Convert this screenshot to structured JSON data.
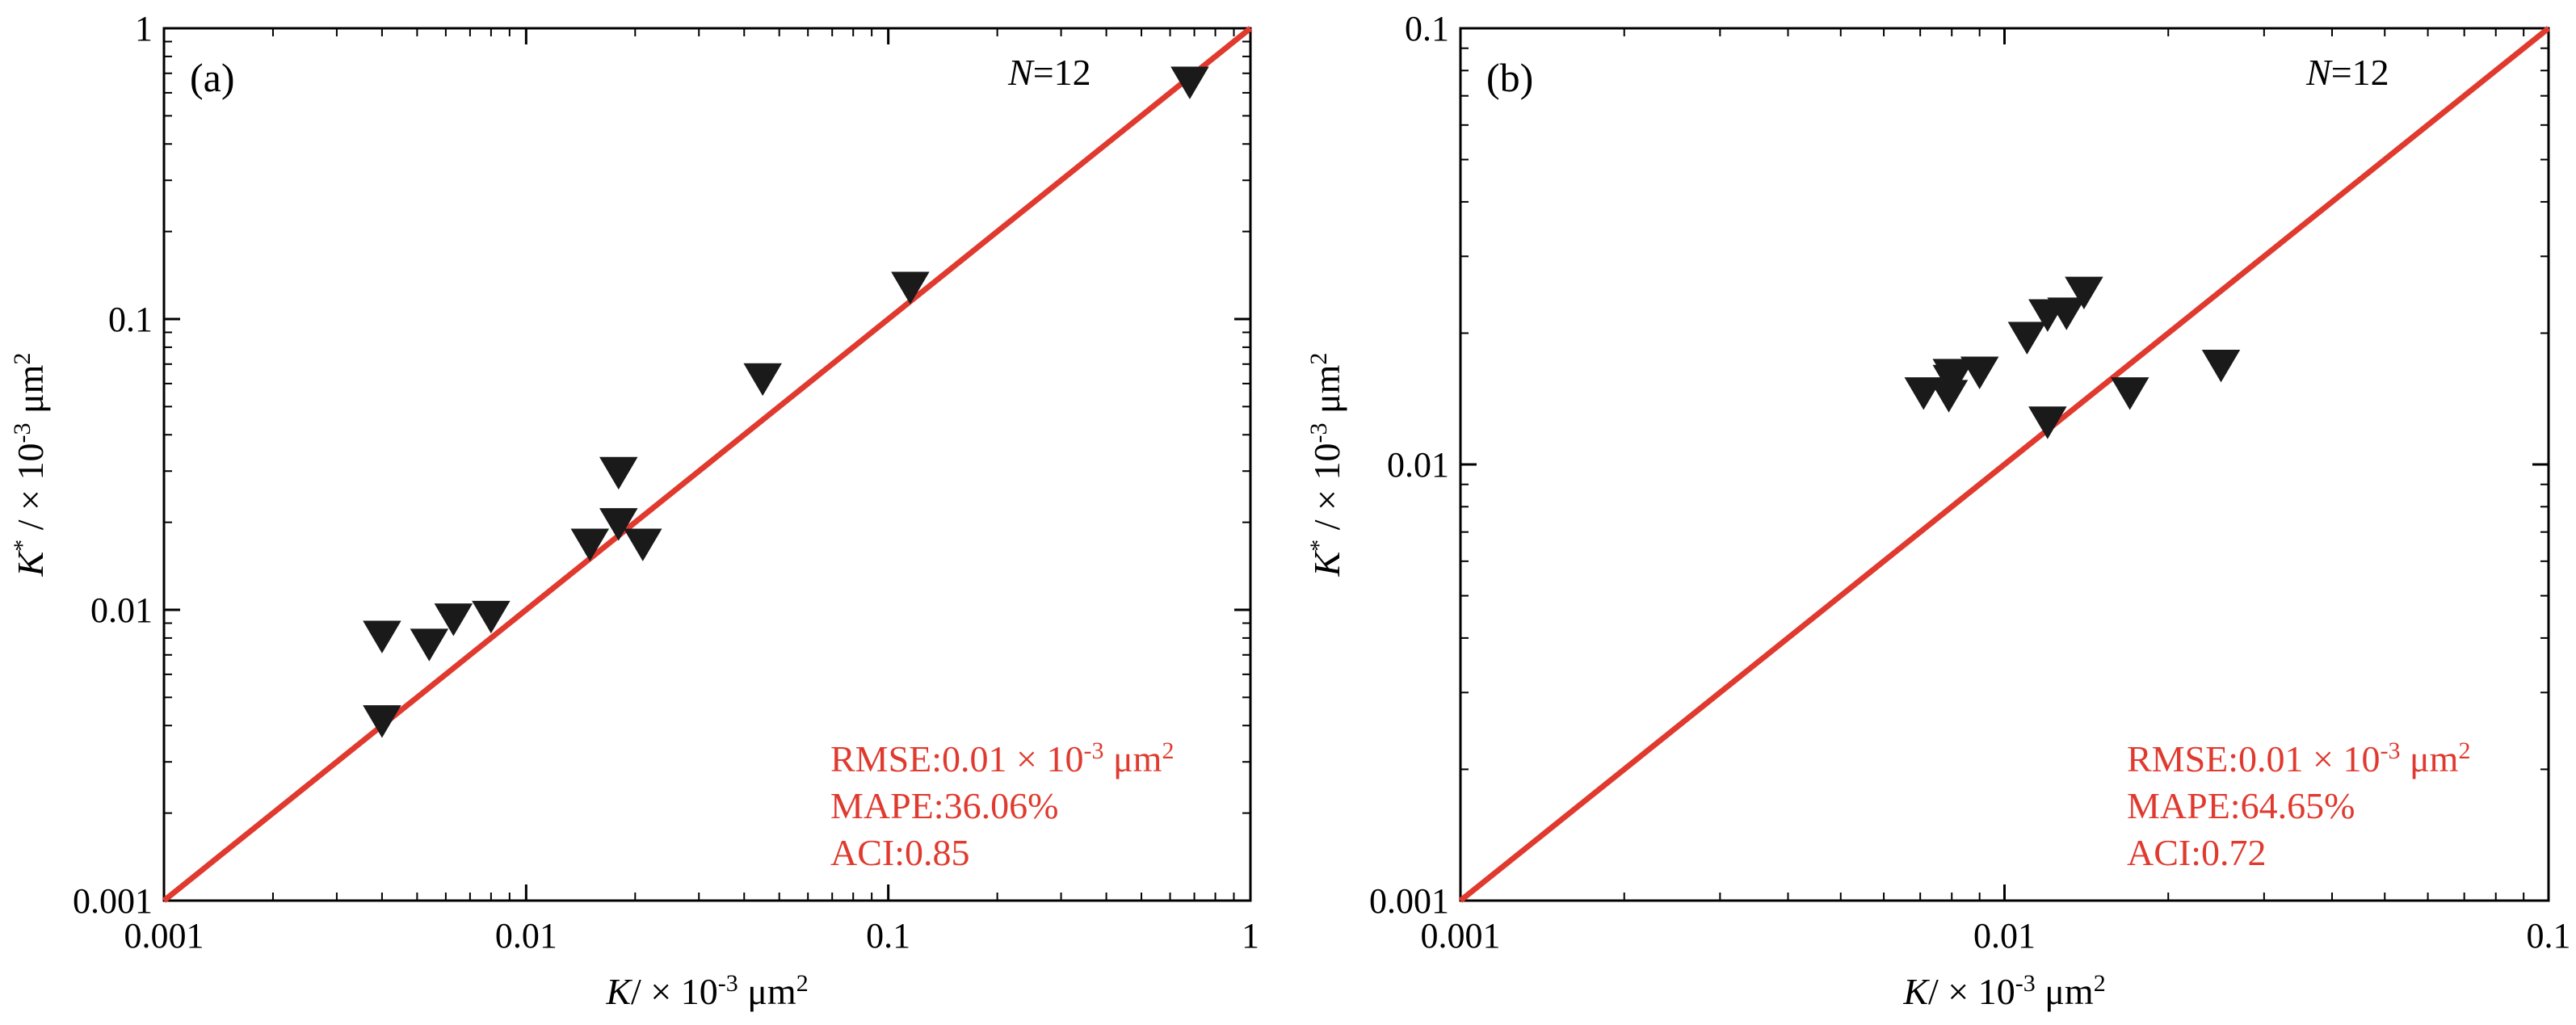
{
  "colors": {
    "fit_line": "#e03a2f",
    "markers": "#1a1a1a",
    "axes": "#000000",
    "stats_text": "#e03a2f"
  },
  "chart_data": [
    {
      "type": "scatter",
      "panel_label": "(a)",
      "n_label": {
        "var": "N",
        "rest": "=12"
      },
      "xlabel": {
        "var": "K",
        "sup": "",
        "rest": "/ × 10",
        "exp": "-3",
        "unit": " μm",
        "unit_exp": "2"
      },
      "ylabel": {
        "var": "K",
        "sup": "*",
        "rest": " / × 10",
        "exp": "-3",
        "unit": " μm",
        "unit_exp": "2"
      },
      "xscale": "log",
      "yscale": "log",
      "xlim": [
        0.001,
        1
      ],
      "ylim": [
        0.001,
        1
      ],
      "xticks": [
        0.001,
        0.01,
        0.1,
        1
      ],
      "xtick_labels": [
        "0.001",
        "0.01",
        "0.1",
        "1"
      ],
      "yticks": [
        0.001,
        0.01,
        0.1,
        1
      ],
      "ytick_labels": [
        "0.001",
        "0.01",
        "0.1",
        "1"
      ],
      "reference_line": "y=x",
      "marker": "down-triangle",
      "x": [
        0.004,
        0.004,
        0.0054,
        0.0063,
        0.008,
        0.015,
        0.018,
        0.018,
        0.021,
        0.045,
        0.115,
        0.68
      ],
      "y": [
        0.0082,
        0.0042,
        0.0077,
        0.0094,
        0.0096,
        0.017,
        0.02,
        0.03,
        0.017,
        0.063,
        0.13,
        0.66
      ],
      "stats": [
        {
          "pre": "RMSE:0.01 × 10",
          "sup": "-3",
          "post": " μm",
          "sup2": "2"
        },
        {
          "pre": "MAPE:36.06%",
          "sup": "",
          "post": "",
          "sup2": ""
        },
        {
          "pre": "ACI:0.85",
          "sup": "",
          "post": "",
          "sup2": ""
        }
      ]
    },
    {
      "type": "scatter",
      "panel_label": "(b)",
      "n_label": {
        "var": "N",
        "rest": "=12"
      },
      "xlabel": {
        "var": "K",
        "sup": "",
        "rest": "/ × 10",
        "exp": "-3",
        "unit": " μm",
        "unit_exp": "2"
      },
      "ylabel": {
        "var": "K",
        "sup": "*",
        "rest": " / × 10",
        "exp": "-3",
        "unit": " μm",
        "unit_exp": "2"
      },
      "xscale": "log",
      "yscale": "log",
      "xlim": [
        0.001,
        0.1
      ],
      "ylim": [
        0.001,
        0.1
      ],
      "xticks": [
        0.001,
        0.01,
        0.1
      ],
      "xtick_labels": [
        "0.001",
        "0.01",
        "0.1"
      ],
      "yticks": [
        0.001,
        0.01,
        0.1
      ],
      "ytick_labels": [
        "0.001",
        "0.01",
        "0.1"
      ],
      "reference_line": "y=x",
      "marker": "down-triangle",
      "x": [
        0.0071,
        0.0079,
        0.008,
        0.008,
        0.009,
        0.011,
        0.012,
        0.012,
        0.013,
        0.014,
        0.017,
        0.025
      ],
      "y": [
        0.0147,
        0.0145,
        0.0157,
        0.0162,
        0.0164,
        0.0197,
        0.0222,
        0.0126,
        0.0224,
        0.025,
        0.0147,
        0.017
      ],
      "stats": [
        {
          "pre": "RMSE:0.01 × 10",
          "sup": "-3",
          "post": " μm",
          "sup2": "2"
        },
        {
          "pre": "MAPE:64.65%",
          "sup": "",
          "post": "",
          "sup2": ""
        },
        {
          "pre": "ACI:0.72",
          "sup": "",
          "post": "",
          "sup2": ""
        }
      ]
    }
  ]
}
